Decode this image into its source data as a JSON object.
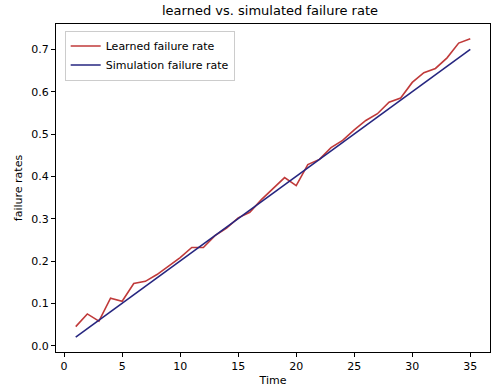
{
  "chart_data": {
    "type": "line",
    "title": "learned vs. simulated failure rate",
    "x_label": "Time",
    "y_label": "failure rates",
    "x": [
      1,
      2,
      3,
      4,
      5,
      6,
      7,
      8,
      9,
      10,
      11,
      12,
      13,
      14,
      15,
      16,
      17,
      18,
      19,
      20,
      21,
      22,
      23,
      24,
      25,
      26,
      27,
      28,
      29,
      30,
      31,
      32,
      33,
      34,
      35
    ],
    "series": [
      {
        "name": "Learned failure rate",
        "color": "#c03a3a",
        "line_style": "solid",
        "values": [
          0.045,
          0.075,
          0.058,
          0.112,
          0.105,
          0.147,
          0.152,
          0.168,
          0.188,
          0.208,
          0.232,
          0.232,
          0.26,
          0.278,
          0.302,
          0.315,
          0.345,
          0.37,
          0.397,
          0.378,
          0.428,
          0.44,
          0.468,
          0.485,
          0.51,
          0.532,
          0.548,
          0.575,
          0.585,
          0.622,
          0.645,
          0.655,
          0.68,
          0.715,
          0.725
        ]
      },
      {
        "name": "Simulation failure rate",
        "color": "#262680",
        "line_style": "solid",
        "values": [
          0.02,
          0.04,
          0.06,
          0.08,
          0.1,
          0.12,
          0.14,
          0.16,
          0.18,
          0.2,
          0.22,
          0.24,
          0.26,
          0.28,
          0.3,
          0.32,
          0.34,
          0.36,
          0.38,
          0.4,
          0.42,
          0.44,
          0.46,
          0.48,
          0.5,
          0.52,
          0.54,
          0.56,
          0.58,
          0.6,
          0.62,
          0.64,
          0.66,
          0.68,
          0.7
        ]
      }
    ],
    "xlim": [
      -0.7,
      36.7
    ],
    "xticks": [
      0,
      5,
      10,
      15,
      20,
      25,
      30,
      35
    ],
    "ylim": [
      -0.015,
      0.76
    ],
    "yticks": [
      {
        "value": 0,
        "label": "0.0"
      },
      0.1,
      0.2,
      0.3,
      0.4,
      0.5,
      0.6,
      0.7
    ],
    "grid": false,
    "legend": "upper left"
  }
}
